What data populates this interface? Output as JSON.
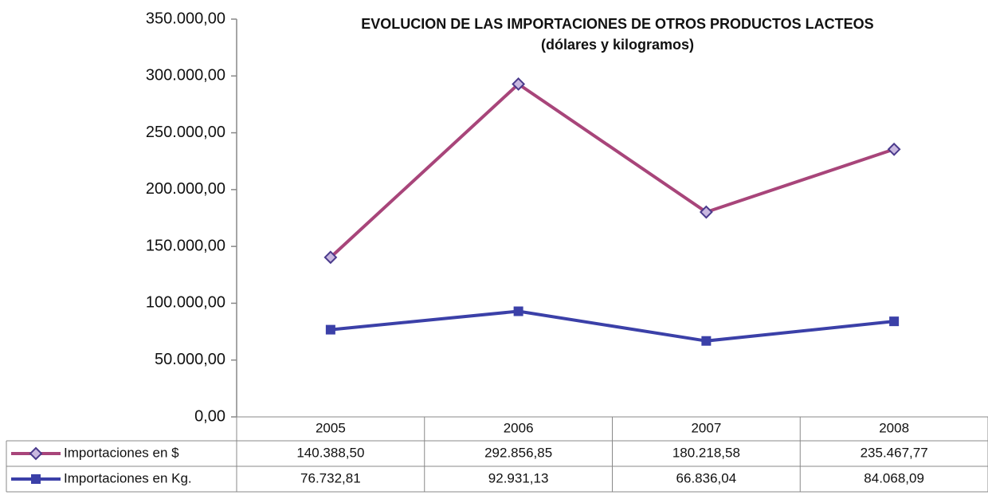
{
  "chart_data": {
    "type": "line",
    "title": "EVOLUCION DE LAS IMPORTACIONES DE  OTROS PRODUCTOS LACTEOS",
    "subtitle": "(dólares y kilogramos)",
    "categories": [
      "2005",
      "2006",
      "2007",
      "2008"
    ],
    "series": [
      {
        "name": "Importaciones en $",
        "color": "#a8457a",
        "marker_color": "#4a3a8c",
        "values": [
          140388.5,
          292856.85,
          180218.58,
          235467.77
        ],
        "value_labels": [
          "140.388,50",
          "292.856,85",
          "180.218,58",
          "235.467,77"
        ]
      },
      {
        "name": "Importaciones en Kg.",
        "color": "#3b40a8",
        "marker_color": "#3b40a8",
        "values": [
          76732.81,
          92931.13,
          66836.04,
          84068.09
        ],
        "value_labels": [
          "76.732,81",
          "92.931,13",
          "66.836,04",
          "84.068,09"
        ]
      }
    ],
    "ylim": [
      0,
      350000
    ],
    "yticks": [
      {
        "value": 0,
        "label": "0,00"
      },
      {
        "value": 50000,
        "label": "50.000,00"
      },
      {
        "value": 100000,
        "label": "100.000,00"
      },
      {
        "value": 150000,
        "label": "150.000,00"
      },
      {
        "value": 200000,
        "label": "200.000,00"
      },
      {
        "value": 250000,
        "label": "250.000,00"
      },
      {
        "value": 300000,
        "label": "300.000,00"
      },
      {
        "value": 350000,
        "label": "350.000,00"
      }
    ],
    "data_table": true
  }
}
